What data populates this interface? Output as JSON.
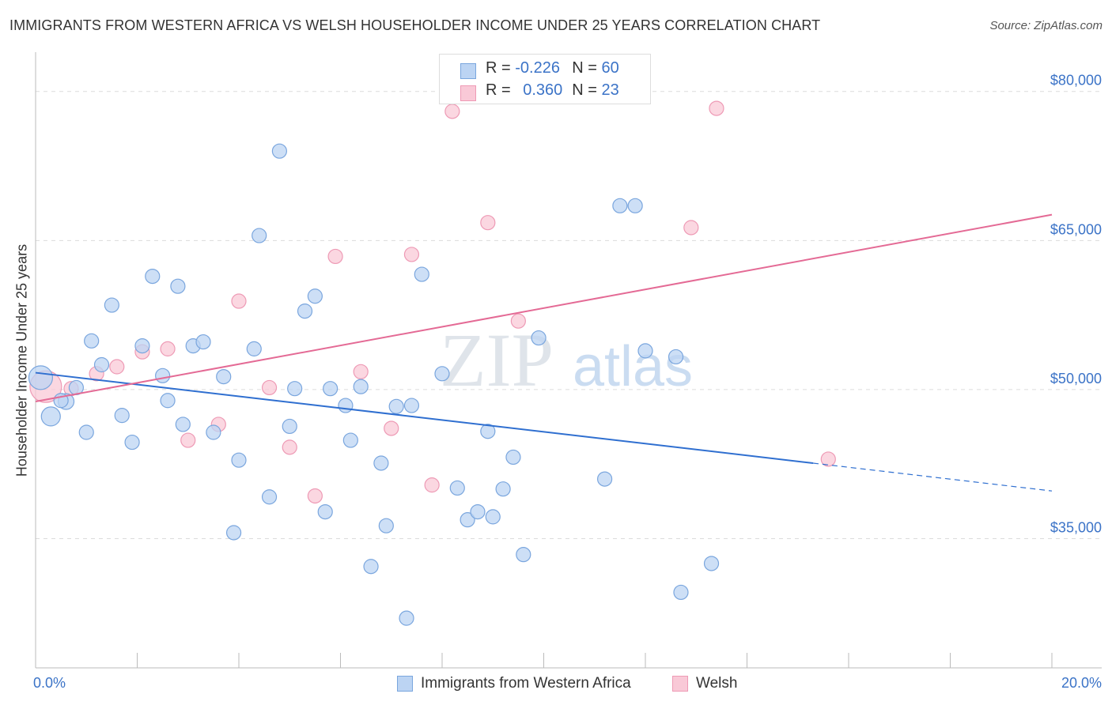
{
  "title": "IMMIGRANTS FROM WESTERN AFRICA VS WELSH HOUSEHOLDER INCOME UNDER 25 YEARS CORRELATION CHART",
  "source": "Source: ZipAtlas.com",
  "watermark": {
    "zip": "ZIP",
    "atlas": "atlas"
  },
  "legend": {
    "r_label": "R =",
    "n_label": "N =",
    "rows": [
      {
        "r": "-0.226",
        "n": "60",
        "fill": "#bcd4f3",
        "stroke": "#7aa6de"
      },
      {
        "r": "0.360",
        "n": "23",
        "fill": "#f9c9d7",
        "stroke": "#ee9ab5"
      }
    ]
  },
  "colors": {
    "blue_line": "#2f6fd0",
    "pink_line": "#e46a95",
    "tick_text": "#3b73c7",
    "grid": "#dcdcdc"
  },
  "chart_data": {
    "type": "scatter",
    "title": "IMMIGRANTS FROM WESTERN AFRICA VS WELSH HOUSEHOLDER INCOME UNDER 25 YEARS CORRELATION CHART",
    "xlabel": "",
    "ylabel": "Householder Income Under 25 years",
    "xlim": [
      0,
      20
    ],
    "ylim": [
      22000,
      83000
    ],
    "x_tick_labels": [
      "0.0%",
      "20.0%"
    ],
    "y_ticks": [
      35000,
      50000,
      65000,
      80000
    ],
    "y_tick_labels": [
      "$35,000",
      "$50,000",
      "$65,000",
      "$80,000"
    ],
    "legend_position": "bottom",
    "series": [
      {
        "name": "Immigrants from Western Africa",
        "fill": "#bcd4f3",
        "stroke": "#7aa6de",
        "trend": {
          "x0": 0,
          "y0": 51700,
          "x1": 15.3,
          "y1": 42600,
          "dash_x1": 20,
          "dash_y1": 39800
        },
        "points": [
          [
            0.1,
            51200,
            15
          ],
          [
            0.3,
            47300,
            12
          ],
          [
            0.6,
            48800,
            10
          ],
          [
            0.8,
            50200,
            9
          ],
          [
            1.0,
            45700,
            9
          ],
          [
            1.1,
            54900,
            9
          ],
          [
            1.3,
            52500,
            9
          ],
          [
            1.5,
            58500,
            9
          ],
          [
            1.7,
            47400,
            9
          ],
          [
            1.9,
            44700,
            9
          ],
          [
            2.1,
            54400,
            9
          ],
          [
            2.3,
            61400,
            9
          ],
          [
            2.5,
            51400,
            9
          ],
          [
            2.6,
            48900,
            9
          ],
          [
            2.8,
            60400,
            9
          ],
          [
            2.9,
            46500,
            9
          ],
          [
            3.1,
            54400,
            9
          ],
          [
            3.3,
            54800,
            9
          ],
          [
            3.5,
            45700,
            9
          ],
          [
            3.7,
            51300,
            9
          ],
          [
            3.9,
            35600,
            9
          ],
          [
            4.0,
            42900,
            9
          ],
          [
            4.3,
            54100,
            9
          ],
          [
            4.4,
            65500,
            9
          ],
          [
            4.6,
            39200,
            9
          ],
          [
            4.8,
            74000,
            9
          ],
          [
            5.0,
            46300,
            9
          ],
          [
            5.1,
            50100,
            9
          ],
          [
            5.3,
            57900,
            9
          ],
          [
            5.5,
            59400,
            9
          ],
          [
            5.7,
            37700,
            9
          ],
          [
            5.8,
            50100,
            9
          ],
          [
            6.1,
            48400,
            9
          ],
          [
            6.2,
            44900,
            9
          ],
          [
            6.4,
            50300,
            9
          ],
          [
            6.6,
            32200,
            9
          ],
          [
            6.8,
            42600,
            9
          ],
          [
            6.9,
            36300,
            9
          ],
          [
            7.1,
            48300,
            9
          ],
          [
            7.3,
            27000,
            9
          ],
          [
            7.4,
            48400,
            9
          ],
          [
            7.6,
            61600,
            9
          ],
          [
            8.0,
            51600,
            9
          ],
          [
            8.3,
            40100,
            9
          ],
          [
            8.5,
            36900,
            9
          ],
          [
            8.7,
            37700,
            9
          ],
          [
            8.9,
            45800,
            9
          ],
          [
            9.0,
            37200,
            9
          ],
          [
            9.2,
            40000,
            9
          ],
          [
            9.4,
            43200,
            9
          ],
          [
            9.6,
            33400,
            9
          ],
          [
            9.9,
            55200,
            9
          ],
          [
            11.2,
            41000,
            9
          ],
          [
            11.5,
            68500,
            9
          ],
          [
            11.8,
            68500,
            9
          ],
          [
            12.0,
            53900,
            9
          ],
          [
            12.6,
            53300,
            9
          ],
          [
            12.7,
            29600,
            9
          ],
          [
            13.3,
            32500,
            9
          ],
          [
            0.5,
            48900,
            9
          ]
        ]
      },
      {
        "name": "Welsh",
        "fill": "#f9c9d7",
        "stroke": "#ee9ab5",
        "trend": {
          "x0": 0,
          "y0": 48800,
          "x1": 20,
          "y1": 67600
        },
        "points": [
          [
            0.2,
            50300,
            20
          ],
          [
            0.7,
            50100,
            9
          ],
          [
            1.2,
            51600,
            9
          ],
          [
            1.6,
            52300,
            9
          ],
          [
            2.1,
            53800,
            9
          ],
          [
            2.6,
            54100,
            9
          ],
          [
            3.0,
            44900,
            9
          ],
          [
            3.6,
            46500,
            9
          ],
          [
            4.0,
            58900,
            9
          ],
          [
            4.6,
            50200,
            9
          ],
          [
            5.0,
            44200,
            9
          ],
          [
            5.5,
            39300,
            9
          ],
          [
            5.9,
            63400,
            9
          ],
          [
            6.4,
            51800,
            9
          ],
          [
            7.0,
            46100,
            9
          ],
          [
            7.4,
            63600,
            9
          ],
          [
            7.8,
            40400,
            9
          ],
          [
            8.2,
            78000,
            9
          ],
          [
            8.9,
            66800,
            9
          ],
          [
            9.5,
            56900,
            9
          ],
          [
            12.9,
            66300,
            9
          ],
          [
            13.4,
            78300,
            9
          ],
          [
            15.6,
            43000,
            9
          ]
        ]
      }
    ]
  }
}
